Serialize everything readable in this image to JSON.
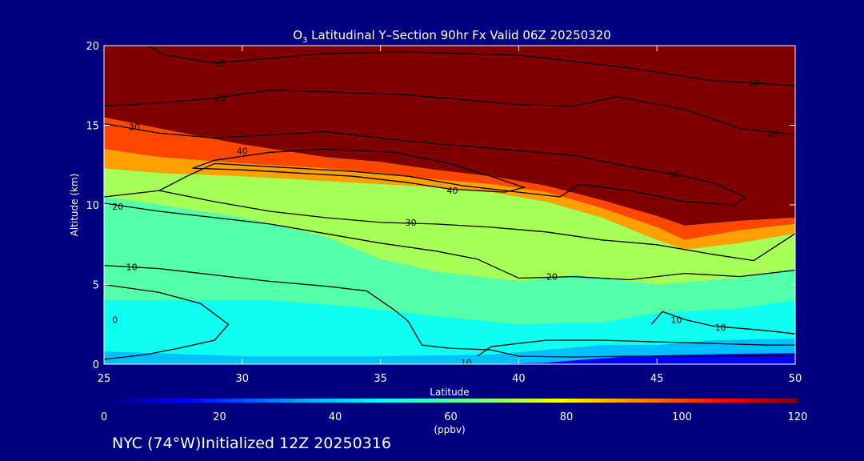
{
  "chart_data": {
    "type": "heatmap",
    "title_main": "O",
    "title_sub": "3",
    "title_rest": " Latitudinal Y–Section 90hr  Fx Valid 06Z 20250320",
    "xlabel": "Latitude",
    "ylabel": "Altitude (km)",
    "xlim": [
      25,
      50
    ],
    "ylim": [
      0,
      20
    ],
    "x_ticks": [
      "25",
      "30",
      "35",
      "40",
      "45",
      "50"
    ],
    "y_ticks": [
      "0",
      "5",
      "10",
      "15",
      "20"
    ],
    "colorbar": {
      "ticks": [
        "0",
        "20",
        "40",
        "60",
        "80",
        "100",
        "120"
      ],
      "range": [
        0,
        120
      ],
      "unit": "(ppbv)"
    },
    "fill_levels": [
      {
        "value": 120,
        "polygon": [
          [
            25,
            20
          ],
          [
            50,
            20
          ],
          [
            50,
            9.2
          ],
          [
            48,
            9
          ],
          [
            46,
            8.7
          ],
          [
            45,
            9.3
          ],
          [
            43,
            10.3
          ],
          [
            41,
            11.2
          ],
          [
            39,
            11.8
          ],
          [
            37,
            12.2
          ],
          [
            35,
            12.7
          ],
          [
            33,
            13
          ],
          [
            30,
            13.8
          ],
          [
            27,
            14.8
          ],
          [
            25,
            15.5
          ]
        ]
      },
      {
        "value": 100,
        "polygon": [
          [
            25,
            15.5
          ],
          [
            27,
            14.8
          ],
          [
            30,
            13.8
          ],
          [
            33,
            13
          ],
          [
            35,
            12.7
          ],
          [
            37,
            12.2
          ],
          [
            39,
            11.8
          ],
          [
            41,
            11.2
          ],
          [
            43,
            10.3
          ],
          [
            45,
            9.3
          ],
          [
            46,
            8.7
          ],
          [
            48,
            9
          ],
          [
            50,
            9.2
          ],
          [
            50,
            8.8
          ],
          [
            48,
            8.4
          ],
          [
            46,
            7.8
          ],
          [
            45,
            8.6
          ],
          [
            43,
            9.8
          ],
          [
            41,
            10.8
          ],
          [
            39,
            11.3
          ],
          [
            37,
            11.6
          ],
          [
            35,
            12
          ],
          [
            33,
            12.3
          ],
          [
            30,
            12.6
          ],
          [
            27,
            13
          ],
          [
            25,
            13.5
          ]
        ]
      },
      {
        "value": 90,
        "polygon": [
          [
            25,
            13.5
          ],
          [
            27,
            13
          ],
          [
            30,
            12.6
          ],
          [
            33,
            12.3
          ],
          [
            35,
            12
          ],
          [
            37,
            11.6
          ],
          [
            39,
            11.3
          ],
          [
            41,
            10.8
          ],
          [
            43,
            9.8
          ],
          [
            45,
            8.6
          ],
          [
            46,
            7.8
          ],
          [
            48,
            8.4
          ],
          [
            50,
            8.8
          ],
          [
            50,
            8.2
          ],
          [
            48,
            7.6
          ],
          [
            46,
            7.2
          ],
          [
            45,
            7.8
          ],
          [
            43,
            9.2
          ],
          [
            41,
            10.2
          ],
          [
            39,
            10.8
          ],
          [
            37,
            11.1
          ],
          [
            35,
            11.3
          ],
          [
            33,
            11.5
          ],
          [
            30,
            11.8
          ],
          [
            27,
            12
          ],
          [
            25,
            12.3
          ]
        ]
      },
      {
        "value": 70,
        "polygon": [
          [
            25,
            12.3
          ],
          [
            27,
            12
          ],
          [
            30,
            11.8
          ],
          [
            33,
            11.5
          ],
          [
            35,
            11.3
          ],
          [
            37,
            11.1
          ],
          [
            39,
            10.8
          ],
          [
            41,
            10.2
          ],
          [
            43,
            9.2
          ],
          [
            45,
            7.8
          ],
          [
            46,
            7.2
          ],
          [
            48,
            7.6
          ],
          [
            50,
            8.2
          ],
          [
            50,
            6
          ],
          [
            48,
            5.4
          ],
          [
            45,
            5
          ],
          [
            42,
            5.6
          ],
          [
            40,
            5.2
          ],
          [
            37,
            5.8
          ],
          [
            35,
            6.6
          ],
          [
            33,
            8
          ],
          [
            30,
            9.2
          ],
          [
            27,
            10
          ],
          [
            25,
            10.5
          ]
        ]
      },
      {
        "value": 60,
        "polygon": [
          [
            25,
            10.5
          ],
          [
            27,
            10
          ],
          [
            30,
            9.2
          ],
          [
            33,
            8
          ],
          [
            35,
            6.6
          ],
          [
            37,
            5.8
          ],
          [
            40,
            5.2
          ],
          [
            42,
            5.6
          ],
          [
            45,
            5
          ],
          [
            48,
            5.4
          ],
          [
            50,
            6
          ],
          [
            50,
            4
          ],
          [
            48,
            3.5
          ],
          [
            45,
            3.2
          ],
          [
            43,
            2.6
          ],
          [
            40,
            2.5
          ],
          [
            37,
            3
          ],
          [
            34,
            3.6
          ],
          [
            31,
            4
          ],
          [
            28,
            4
          ],
          [
            25,
            4
          ]
        ]
      },
      {
        "value": 50,
        "polygon": [
          [
            25,
            4
          ],
          [
            28,
            4
          ],
          [
            31,
            4
          ],
          [
            34,
            3.6
          ],
          [
            37,
            3
          ],
          [
            40,
            2.5
          ],
          [
            43,
            2.6
          ],
          [
            45,
            3.2
          ],
          [
            48,
            3.5
          ],
          [
            50,
            4
          ],
          [
            50,
            1.6
          ],
          [
            47,
            1.5
          ],
          [
            45,
            1.2
          ],
          [
            43,
            1.2
          ],
          [
            41,
            0.9
          ],
          [
            39,
            0.6
          ],
          [
            35,
            0.5
          ],
          [
            30,
            0.5
          ],
          [
            25,
            0.8
          ]
        ]
      },
      {
        "value": 38,
        "polygon": [
          [
            25,
            0.8
          ],
          [
            30,
            0.5
          ],
          [
            35,
            0.5
          ],
          [
            39,
            0.6
          ],
          [
            41,
            0.9
          ],
          [
            43,
            1.2
          ],
          [
            45,
            1.2
          ],
          [
            47,
            1.5
          ],
          [
            50,
            1.6
          ],
          [
            50,
            0.7
          ],
          [
            46,
            0.6
          ],
          [
            44,
            0.5
          ],
          [
            41,
            0.1
          ],
          [
            39,
            0
          ],
          [
            25,
            0
          ]
        ]
      },
      {
        "value": 14,
        "polygon": [
          [
            39,
            0
          ],
          [
            41,
            0.1
          ],
          [
            44,
            0.5
          ],
          [
            46,
            0.6
          ],
          [
            50,
            0.7
          ],
          [
            50,
            0
          ],
          [
            39,
            0
          ]
        ]
      }
    ],
    "contours": [
      {
        "label": "10",
        "label_at": [
          29.2,
          18.9
        ],
        "points": [
          [
            26.6,
            20
          ],
          [
            27.2,
            19.4
          ],
          [
            29,
            18.9
          ],
          [
            31,
            19.2
          ],
          [
            33,
            19.5
          ],
          [
            36,
            19.6
          ],
          [
            40,
            19.4
          ],
          [
            44,
            18.6
          ],
          [
            47,
            17.8
          ],
          [
            50,
            17.5
          ]
        ]
      },
      {
        "label": "10",
        "label_at": [
          48.5,
          17.7
        ],
        "points": null
      },
      {
        "label": "20",
        "label_at": [
          29.2,
          16.7
        ],
        "points": [
          [
            25,
            16.2
          ],
          [
            27,
            16.4
          ],
          [
            29,
            16.7
          ],
          [
            31,
            17.2
          ],
          [
            33,
            17.1
          ],
          [
            36,
            16.9
          ],
          [
            38,
            16.6
          ],
          [
            40,
            16.3
          ],
          [
            42,
            16.2
          ],
          [
            43.5,
            16.8
          ],
          [
            46,
            16
          ],
          [
            48,
            14.8
          ],
          [
            50,
            14.4
          ]
        ]
      },
      {
        "label": "20",
        "label_at": [
          49.2,
          14.5
        ],
        "points": null
      },
      {
        "label": "30",
        "label_at": [
          26.1,
          14.9
        ],
        "points": [
          [
            25,
            15.1
          ],
          [
            27,
            14.5
          ],
          [
            29,
            14.2
          ],
          [
            31,
            14.4
          ],
          [
            33,
            14.6
          ],
          [
            36,
            14
          ],
          [
            38,
            13.7
          ],
          [
            40,
            13.4
          ],
          [
            42,
            13.1
          ],
          [
            44,
            12.4
          ],
          [
            46,
            11.8
          ],
          [
            47,
            11.4
          ],
          [
            48.2,
            10.5
          ],
          [
            47.8,
            10
          ],
          [
            46,
            10.2
          ],
          [
            44,
            10.9
          ],
          [
            42.2,
            11.3
          ],
          [
            41.5,
            10.5
          ],
          [
            40,
            10.8
          ],
          [
            38,
            11.2
          ],
          [
            36,
            11.8
          ],
          [
            34,
            12.1
          ],
          [
            32,
            12.3
          ],
          [
            29,
            12.6
          ],
          [
            28,
            11.8
          ],
          [
            27,
            10.9
          ],
          [
            25,
            10.5
          ]
        ]
      },
      {
        "label": "30",
        "label_at": [
          45.6,
          11.9
        ],
        "points": null
      },
      {
        "label": "40",
        "label_at": [
          30,
          13.4
        ],
        "points": [
          [
            28.2,
            12.3
          ],
          [
            29,
            12.8
          ],
          [
            31,
            13.3
          ],
          [
            33,
            13.5
          ],
          [
            35.5,
            13.3
          ],
          [
            37.5,
            12.6
          ],
          [
            39,
            11.8
          ],
          [
            40.2,
            11.1
          ],
          [
            39.5,
            10.8
          ],
          [
            37.5,
            11
          ],
          [
            36,
            11.4
          ],
          [
            34,
            11.8
          ],
          [
            32,
            12
          ],
          [
            30,
            12.2
          ],
          [
            28.2,
            12.3
          ]
        ]
      },
      {
        "label": "40",
        "label_at": [
          37.6,
          10.9
        ],
        "points": null
      },
      {
        "label": "20",
        "label_at": [
          25.5,
          9.9
        ],
        "points": [
          [
            25,
            10.1
          ],
          [
            27,
            9.6
          ],
          [
            29,
            9.2
          ],
          [
            31,
            8.8
          ],
          [
            33,
            8.2
          ],
          [
            35,
            7.6
          ],
          [
            37,
            7.1
          ],
          [
            38.5,
            6.6
          ],
          [
            40,
            5.4
          ],
          [
            42,
            5.5
          ],
          [
            44,
            5.3
          ],
          [
            46,
            5.7
          ],
          [
            48,
            5.5
          ],
          [
            50,
            5.9
          ]
        ]
      },
      {
        "label": "30",
        "label_at": [
          36.1,
          8.9
        ],
        "points": [
          [
            27,
            10.9
          ],
          [
            29,
            10.2
          ],
          [
            31,
            9.6
          ],
          [
            33,
            9.2
          ],
          [
            35,
            8.9
          ],
          [
            37,
            8.8
          ],
          [
            39,
            8.6
          ],
          [
            41,
            8.3
          ],
          [
            43,
            7.8
          ],
          [
            45,
            7.5
          ],
          [
            47,
            6.9
          ],
          [
            48.5,
            6.5
          ],
          [
            50,
            8.2
          ]
        ]
      },
      {
        "label": "20",
        "label_at": [
          41.2,
          5.5
        ],
        "points": null
      },
      {
        "label": "10",
        "label_at": [
          26,
          6.1
        ],
        "points": [
          [
            25,
            6.2
          ],
          [
            27,
            6
          ],
          [
            29,
            5.6
          ],
          [
            31,
            5.2
          ],
          [
            33,
            4.9
          ],
          [
            34.5,
            4.6
          ],
          [
            35.5,
            3.4
          ],
          [
            36,
            2.7
          ],
          [
            36.5,
            1.2
          ],
          [
            37.5,
            1
          ],
          [
            39,
            0.9
          ],
          [
            40,
            0.5
          ],
          [
            42,
            0.45
          ],
          [
            44,
            0.5
          ],
          [
            47,
            0.5
          ],
          [
            50,
            0.55
          ]
        ]
      },
      {
        "label": "0",
        "label_at": [
          25.4,
          2.8
        ],
        "points": [
          [
            25,
            5
          ],
          [
            27,
            4.5
          ],
          [
            28.5,
            3.8
          ],
          [
            29.5,
            2.5
          ],
          [
            29,
            1.5
          ],
          [
            27.7,
            1
          ],
          [
            26.5,
            0.6
          ],
          [
            25,
            0.3
          ]
        ]
      },
      {
        "label": "10",
        "label_at": [
          38.1,
          0.1
        ],
        "points": [
          [
            38.5,
            0.5
          ],
          [
            39,
            1.1
          ],
          [
            41,
            1.5
          ],
          [
            43,
            1.5
          ],
          [
            45,
            1.4
          ],
          [
            47,
            1.3
          ],
          [
            49,
            1.2
          ],
          [
            50,
            1.2
          ]
        ]
      },
      {
        "label": "10",
        "label_at": [
          45.7,
          2.8
        ],
        "points": [
          [
            44.8,
            2.5
          ],
          [
            45.2,
            3.3
          ],
          [
            46,
            2.8
          ],
          [
            47,
            2.4
          ],
          [
            49,
            2.1
          ],
          [
            50,
            1.9
          ]
        ]
      },
      {
        "label": "10",
        "label_at": [
          47.3,
          2.3
        ],
        "points": null
      }
    ],
    "footer": "NYC (74°W)Initialized 12Z 20250316"
  }
}
